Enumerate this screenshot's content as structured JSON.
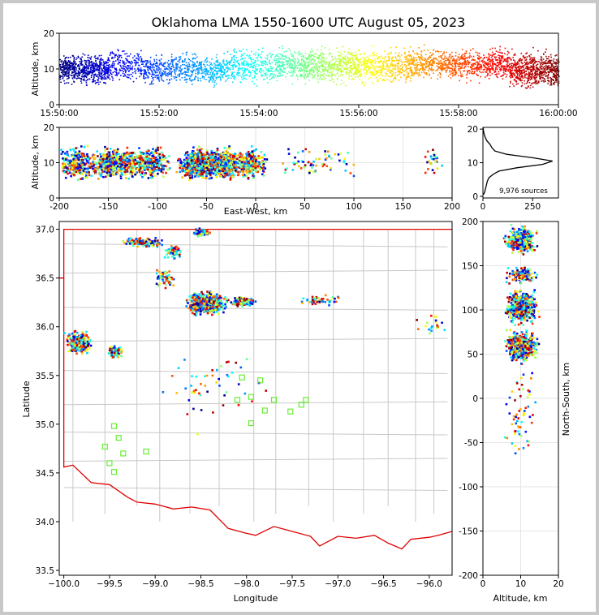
{
  "title": "Oklahoma LMA 1550-1600 UTC August 05, 2023",
  "colors": {
    "county": "#c8c8c8",
    "state": "#e00000",
    "grid": "#e6e6e6",
    "station": "#66ee33",
    "frame": "#c8c8c8"
  },
  "chart_data": [
    {
      "id": "time_height",
      "type": "scatter",
      "xlabel": "",
      "ylabel": "Altitude, km",
      "x_range_sec": [
        0,
        600
      ],
      "ylim": [
        0,
        20
      ],
      "xticks": [
        {
          "v": 0,
          "label": "15:50:00"
        },
        {
          "v": 120,
          "label": "15:52:00"
        },
        {
          "v": 240,
          "label": "15:54:00"
        },
        {
          "v": 360,
          "label": "15:56:00"
        },
        {
          "v": 480,
          "label": "15:58:00"
        },
        {
          "v": 600,
          "label": "16:00:00"
        }
      ],
      "yticks": [
        0,
        10,
        20
      ],
      "clusters": [
        {
          "t": [
            0,
            60
          ],
          "center": 10,
          "spread": 3.2,
          "density": 1.2
        },
        {
          "t": [
            60,
            100
          ],
          "center": 11,
          "spread": 4,
          "density": 0.6
        },
        {
          "t": [
            100,
            200
          ],
          "center": 10,
          "spread": 3.5,
          "density": 0.7
        },
        {
          "t": [
            200,
            260
          ],
          "center": 11,
          "spread": 4,
          "density": 0.6
        },
        {
          "t": [
            260,
            420
          ],
          "center": 11,
          "spread": 4,
          "density": 0.8
        },
        {
          "t": [
            420,
            540
          ],
          "center": 11.5,
          "spread": 3.5,
          "density": 0.8
        },
        {
          "t": [
            540,
            600
          ],
          "center": 10,
          "spread": 4,
          "density": 1.2
        }
      ]
    },
    {
      "id": "east_west_height",
      "type": "scatter",
      "xlabel": "East-West, km",
      "ylabel": "Altitude, km",
      "xlim": [
        -200,
        200
      ],
      "ylim": [
        0,
        20
      ],
      "xticks": [
        -200,
        -150,
        -100,
        -50,
        0,
        50,
        100,
        150,
        200
      ],
      "yticks": [
        0,
        10,
        20
      ]
    },
    {
      "id": "altitude_histogram",
      "type": "line",
      "xlabel": "",
      "ylabel": "",
      "xlim": [
        0,
        380
      ],
      "ylim": [
        0,
        21
      ],
      "xticks": [
        0,
        250
      ],
      "yticks": [
        0,
        10,
        20
      ],
      "annotation": "9,976 sources",
      "profile": [
        {
          "alt": 0.5,
          "n": 3
        },
        {
          "alt": 1.5,
          "n": 10
        },
        {
          "alt": 2.5,
          "n": 14
        },
        {
          "alt": 3.5,
          "n": 18
        },
        {
          "alt": 4.5,
          "n": 22
        },
        {
          "alt": 5.5,
          "n": 30
        },
        {
          "alt": 6.5,
          "n": 50
        },
        {
          "alt": 7.5,
          "n": 80
        },
        {
          "alt": 8.5,
          "n": 170
        },
        {
          "alt": 9.5,
          "n": 300
        },
        {
          "alt": 10.5,
          "n": 350
        },
        {
          "alt": 11.5,
          "n": 250
        },
        {
          "alt": 12.5,
          "n": 120
        },
        {
          "alt": 13.5,
          "n": 60
        },
        {
          "alt": 14.5,
          "n": 45
        },
        {
          "alt": 15.5,
          "n": 35
        },
        {
          "alt": 16.5,
          "n": 20
        },
        {
          "alt": 17.5,
          "n": 12
        },
        {
          "alt": 18.5,
          "n": 6
        },
        {
          "alt": 19.5,
          "n": 3
        },
        {
          "alt": 20.5,
          "n": 1
        }
      ]
    },
    {
      "id": "plan_view",
      "type": "scatter",
      "xlabel": "Longitude",
      "ylabel": "Latitude",
      "xlim": [
        -100.05,
        -95.75
      ],
      "ylim": [
        33.45,
        37.08
      ],
      "xticks": [
        {
          "v": -100,
          "label": "−100.0"
        },
        {
          "v": -99.5,
          "label": "−99.5"
        },
        {
          "v": -99,
          "label": "−99.0"
        },
        {
          "v": -98.5,
          "label": "−98.5"
        },
        {
          "v": -98,
          "label": "−98.0"
        },
        {
          "v": -97.5,
          "label": "−97.5"
        },
        {
          "v": -97,
          "label": "−97.0"
        },
        {
          "v": -96.5,
          "label": "−96.5"
        },
        {
          "v": -96,
          "label": "−96.0"
        }
      ],
      "yticks": [
        33.5,
        34.0,
        34.5,
        35.0,
        35.5,
        36.0,
        36.5,
        37.0
      ],
      "stations": [
        [
          -98.05,
          35.48
        ],
        [
          -97.85,
          35.45
        ],
        [
          -98.1,
          35.25
        ],
        [
          -97.95,
          35.28
        ],
        [
          -97.7,
          35.25
        ],
        [
          -97.4,
          35.2
        ],
        [
          -97.35,
          35.25
        ],
        [
          -97.52,
          35.13
        ],
        [
          -97.8,
          35.14
        ],
        [
          -97.95,
          35.01
        ],
        [
          -99.45,
          34.98
        ],
        [
          -99.4,
          34.86
        ],
        [
          -99.55,
          34.77
        ],
        [
          -99.35,
          34.7
        ],
        [
          -99.1,
          34.72
        ],
        [
          -99.5,
          34.6
        ],
        [
          -99.45,
          34.51
        ]
      ]
    },
    {
      "id": "north_south_height",
      "type": "scatter",
      "xlabel": "Altitude, km",
      "ylabel": "North-South, km",
      "xlim": [
        0,
        20
      ],
      "ylim": [
        -200,
        200
      ],
      "xticks": [
        0,
        10,
        20
      ],
      "yticks": [
        -200,
        -150,
        -100,
        -50,
        0,
        50,
        100,
        150,
        200
      ]
    }
  ]
}
